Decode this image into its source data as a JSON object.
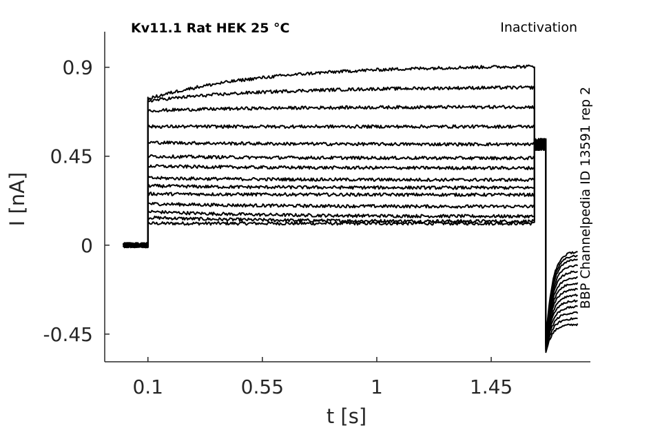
{
  "chart_data": {
    "type": "line",
    "title_left": "Kv11.1  Rat  HEK  25 °C",
    "title_right": "Inactivation",
    "side_label": "BBP Channelpedia ID 13591 rep 2",
    "xlabel": "t [s]",
    "ylabel": "I [nA]",
    "xlim": [
      -0.07,
      1.84
    ],
    "ylim": [
      -0.59,
      1.08
    ],
    "x_ticks": [
      0.1,
      0.55,
      1,
      1.45
    ],
    "x_tick_labels": [
      "0.1",
      "0.55",
      "1",
      "1.45"
    ],
    "y_ticks": [
      -0.45,
      0,
      0.45,
      0.9
    ],
    "y_tick_labels": [
      "-0.45",
      "0",
      "0.45",
      "0.9"
    ],
    "grid": false,
    "line_color": "#000000",
    "protocol": {
      "baseline_start": 0.003,
      "step_on": 0.1,
      "step_off": 1.62,
      "tail_start": 1.665,
      "tail_end": 1.79,
      "end": 1.79
    },
    "series": [
      {
        "values": {
          "step_initial": 0.11,
          "step_final": 0.11,
          "tail_final": -0.4
        }
      },
      {
        "values": {
          "step_initial": 0.14,
          "step_final": 0.12,
          "tail_final": -0.37
        }
      },
      {
        "values": {
          "step_initial": 0.17,
          "step_final": 0.145,
          "tail_final": -0.34
        }
      },
      {
        "values": {
          "step_initial": 0.21,
          "step_final": 0.195,
          "tail_final": -0.31
        }
      },
      {
        "values": {
          "step_initial": 0.26,
          "step_final": 0.255,
          "tail_final": -0.28
        }
      },
      {
        "values": {
          "step_initial": 0.3,
          "step_final": 0.29,
          "tail_final": -0.25
        }
      },
      {
        "values": {
          "step_initial": 0.34,
          "step_final": 0.33,
          "tail_final": -0.22
        }
      },
      {
        "values": {
          "step_initial": 0.4,
          "step_final": 0.39,
          "tail_final": -0.19
        }
      },
      {
        "values": {
          "step_initial": 0.45,
          "step_final": 0.44,
          "tail_final": -0.16
        }
      },
      {
        "values": {
          "step_initial": 0.52,
          "step_final": 0.51,
          "tail_final": -0.13
        }
      },
      {
        "values": {
          "step_initial": 0.6,
          "step_final": 0.6,
          "tail_final": -0.1
        }
      },
      {
        "values": {
          "step_initial": 0.68,
          "step_final": 0.7,
          "tail_final": -0.07
        }
      },
      {
        "values": {
          "step_initial": 0.73,
          "step_final": 0.8,
          "tail_final": -0.05
        }
      },
      {
        "values": {
          "step_initial": 0.74,
          "step_final": 0.91,
          "tail_final": -0.03
        }
      }
    ],
    "tail_values": {
      "plateau": 0.51,
      "tail_min": -0.54
    }
  }
}
